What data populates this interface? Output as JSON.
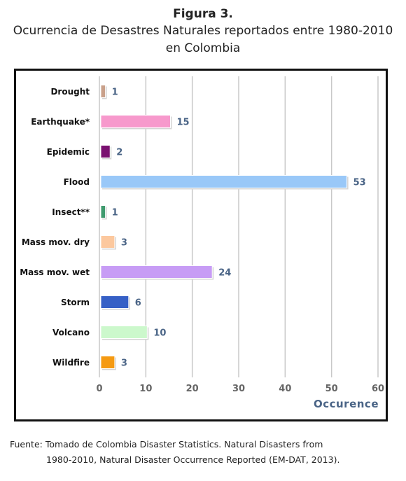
{
  "figure": {
    "number": "Figura 3.",
    "title_line1": "Ocurrencia de Desastres Naturales reportados  entre 1980-2010",
    "title_line2": "en Colombia"
  },
  "source": {
    "line1": "Fuente: Tomado de Colombia Disaster Statistics. Natural Disasters from",
    "line2": "1980-2010, Natural Disaster Occurrence Reported (EM-DAT, 2013)."
  },
  "chart_data": {
    "type": "bar",
    "orientation": "horizontal",
    "categories": [
      "Drought",
      "Earthquake*",
      "Epidemic",
      "Flood",
      "Insect**",
      "Mass mov. dry",
      "Mass mov. wet",
      "Storm",
      "Volcano",
      "Wildfire"
    ],
    "values": [
      1,
      15,
      2,
      53,
      1,
      3,
      24,
      6,
      10,
      3
    ],
    "colors": [
      "#c9a08a",
      "#f799cc",
      "#7a1070",
      "#99c8f8",
      "#3f9a6e",
      "#fcc89e",
      "#c79cf5",
      "#3660c6",
      "#ccf8cc",
      "#f59a12"
    ],
    "xlabel": "Occurence",
    "ylabel": "",
    "xlim": [
      0,
      60
    ],
    "xticks": [
      0,
      10,
      20,
      30,
      40,
      50,
      60
    ],
    "grid": true,
    "data_labels": true
  }
}
